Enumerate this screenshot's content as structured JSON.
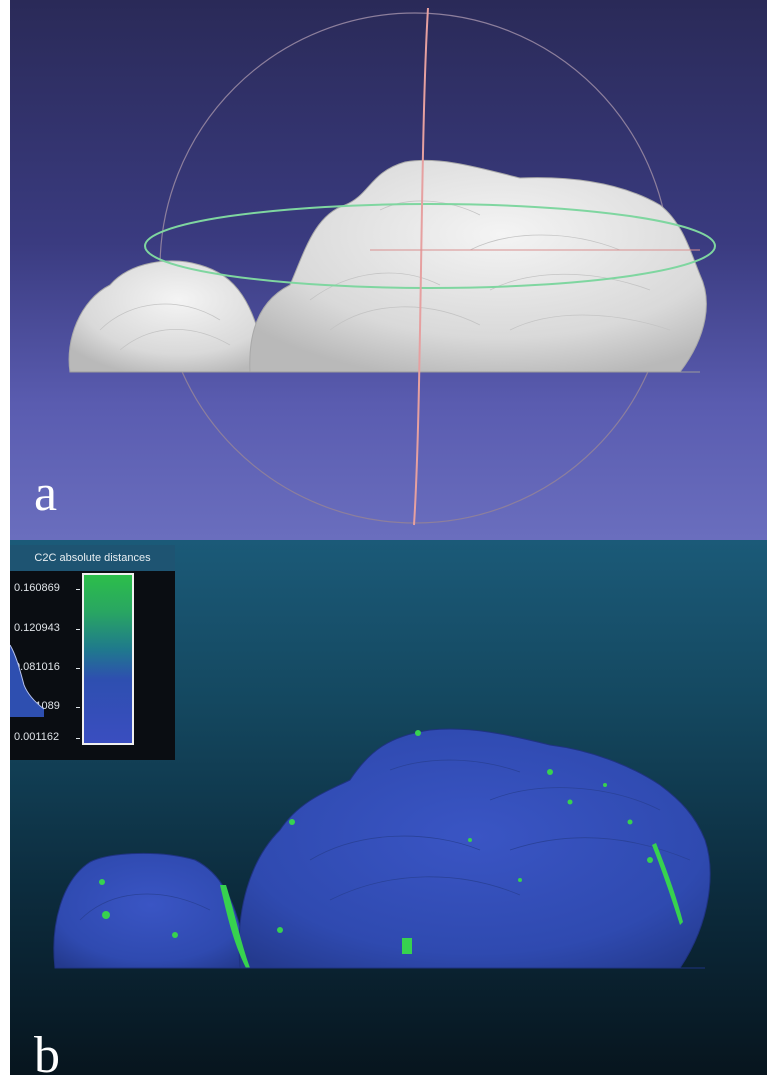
{
  "panels": [
    {
      "label": "a"
    },
    {
      "label": "b"
    }
  ],
  "colorscale": {
    "title": "C2C absolute distances",
    "ticks": [
      "0.160869",
      "0.120943",
      "0.081016",
      "0.041089",
      "0.001162"
    ],
    "colors": [
      "#2cbe4a",
      "#29a662",
      "#1f7a8c",
      "#2e4fb0",
      "#3a4ec0"
    ]
  }
}
